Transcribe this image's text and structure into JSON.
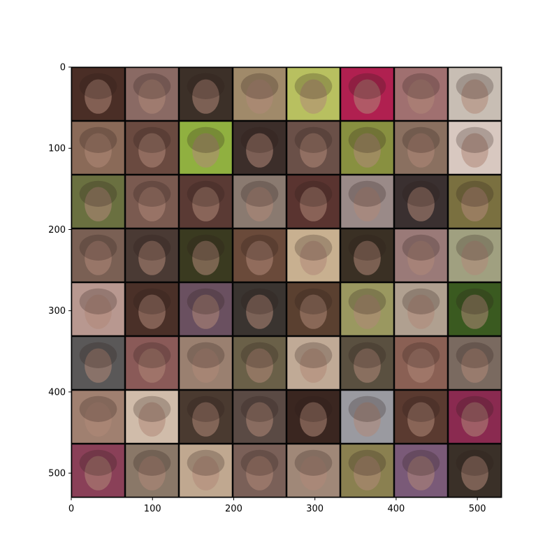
{
  "image": {
    "description_type": "matplotlib imshow of an 8x8 grid of generated face images",
    "grid_rows": 8,
    "grid_cols": 8,
    "cells": [
      [
        "#4a2e26",
        "#8a6a64",
        "#3c3028",
        "#a08a6a",
        "#b8c060",
        "#b02050",
        "#a07070",
        "#c8beb4"
      ],
      [
        "#8a6a58",
        "#6a4a40",
        "#90b040",
        "#3c2e2a",
        "#6a5048",
        "#889040",
        "#8a7060",
        "#d8c8c0"
      ],
      [
        "#6a7040",
        "#7a5a50",
        "#5a3a34",
        "#8a7a70",
        "#5a3430",
        "#9a8a88",
        "#3a3030",
        "#7a7040"
      ],
      [
        "#7a6054",
        "#4a3a34",
        "#3a3a20",
        "#6a4a3a",
        "#c8b090",
        "#3a3024",
        "#9a7a78",
        "#a0a080"
      ],
      [
        "#b89890",
        "#4a3028",
        "#6a5060",
        "#3a3430",
        "#5a4030",
        "#9a9860",
        "#b0a090",
        "#3a5a20"
      ],
      [
        "#5a5858",
        "#8a5a58",
        "#9a8070",
        "#6a6048",
        "#c0aa96",
        "#5a5040",
        "#8a6054",
        "#7a6a60"
      ],
      [
        "#a08070",
        "#d0bcaa",
        "#4a3a30",
        "#5a4a44",
        "#3a2620",
        "#9a9aa0",
        "#5a3a30",
        "#8a2a50"
      ],
      [
        "#8a4058",
        "#8a7868",
        "#c0a890",
        "#7a6058",
        "#a08878",
        "#8a8050",
        "#7a5a78",
        "#3a3028"
      ]
    ]
  },
  "axes": {
    "x_range": [
      0,
      530
    ],
    "y_range": [
      0,
      530
    ],
    "y_inverted": true,
    "x_ticks": [
      {
        "value": 0,
        "label": "0"
      },
      {
        "value": 100,
        "label": "100"
      },
      {
        "value": 200,
        "label": "200"
      },
      {
        "value": 300,
        "label": "300"
      },
      {
        "value": 400,
        "label": "400"
      },
      {
        "value": 500,
        "label": "500"
      }
    ],
    "y_ticks": [
      {
        "value": 0,
        "label": "0"
      },
      {
        "value": 100,
        "label": "100"
      },
      {
        "value": 200,
        "label": "200"
      },
      {
        "value": 300,
        "label": "300"
      },
      {
        "value": 400,
        "label": "400"
      },
      {
        "value": 500,
        "label": "500"
      }
    ]
  }
}
